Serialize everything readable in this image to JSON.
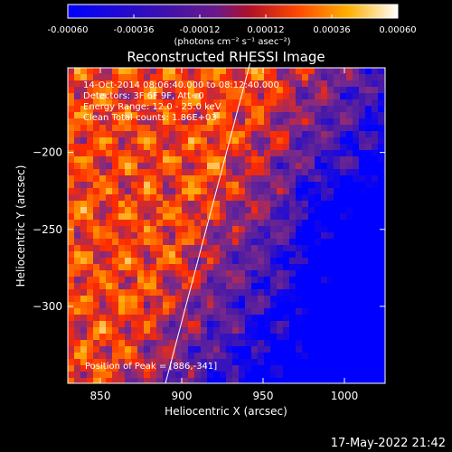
{
  "chart_data": {
    "type": "heatmap",
    "title": "Reconstructed RHESSI Image",
    "xlabel": "Heliocentric X (arcsec)",
    "ylabel": "Heliocentric Y (arcsec)",
    "xlim": [
      830,
      1025
    ],
    "ylim": [
      -350,
      -145
    ],
    "x_ticks": [
      850,
      900,
      950,
      1000
    ],
    "x_tick_labels": [
      "850",
      "900",
      "950",
      "1000"
    ],
    "y_ticks": [
      -200,
      -250,
      -300
    ],
    "y_tick_labels": [
      "−200",
      "−250",
      "−300"
    ],
    "colorbar": {
      "range": [
        -0.0006,
        0.0006
      ],
      "ticks": [
        -0.0006,
        -0.00036,
        -0.00012,
        0.00012,
        0.00036,
        0.0006
      ],
      "tick_labels": [
        "-0.00060",
        "-0.00036",
        "-0.00012",
        "0.00012",
        "0.00036",
        "0.00060"
      ],
      "unit_label": "(photons cm⁻² s⁻¹ asec⁻²)"
    },
    "annotations": [
      "14-Oct-2014 08:06:40.000 to 08:12:40.000",
      "Detectors: 3F 6F 9F, Att=0",
      "Energy Range: 12.0 - 25.0 keV",
      "Clean    Total counts: 1.86E+03"
    ],
    "peak_label": "Position of Peak = [886,-341]",
    "peak_position": [
      886,
      -341
    ],
    "limb_line": [
      [
        890,
        -350
      ],
      [
        942,
        -142
      ]
    ],
    "grid": false,
    "colormap": [
      "#0000ff",
      "#4a1aa6",
      "#7a2a8a",
      "#ff2a00",
      "#ffa400",
      "#ffffff"
    ]
  },
  "footer": {
    "timestamp": "17-May-2022 21:42"
  }
}
